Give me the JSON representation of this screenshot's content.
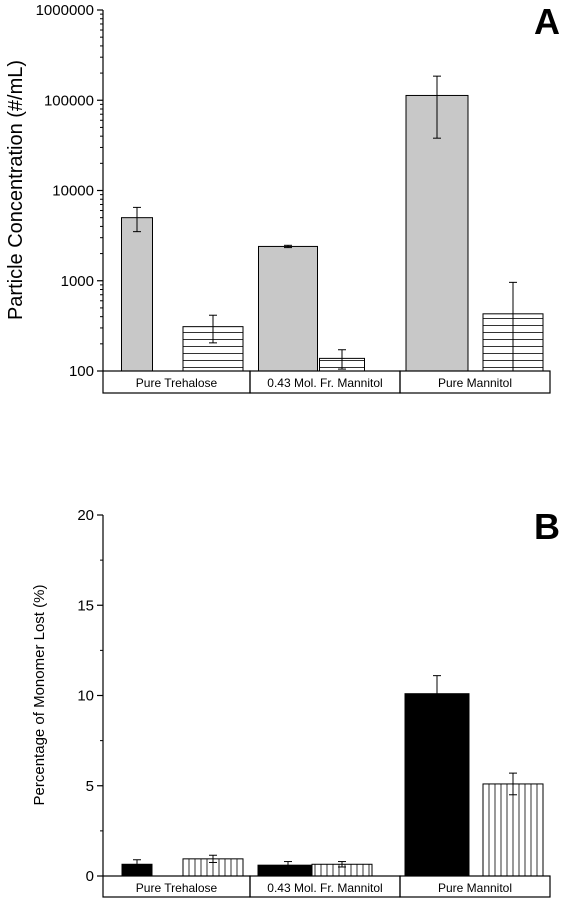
{
  "chart_data": [
    {
      "type": "bar",
      "panel_label": "A",
      "ylabel": "Particle Concentration (#/mL)",
      "yscale": "log",
      "ylim": [
        100,
        1000000
      ],
      "yticks": [
        "100",
        "1000",
        "10000",
        "100000",
        "1000000"
      ],
      "categories": [
        "Pure Trehalose",
        "0.43 Mol. Fr. Mannitol",
        "Pure Mannitol"
      ],
      "series": [
        {
          "values": [
            5000,
            2400,
            113000
          ],
          "error_low": [
            3500,
            2330,
            38000
          ],
          "error_high": [
            6500,
            2470,
            185000
          ],
          "fill": "#c8c8c8",
          "pattern": "solid"
        },
        {
          "values": [
            310,
            138,
            430
          ],
          "error_low": [
            205,
            105,
            100
          ],
          "error_high": [
            415,
            172,
            960
          ],
          "fill": "#ffffff",
          "pattern": "horizontal-lines"
        }
      ]
    },
    {
      "type": "bar",
      "panel_label": "B",
      "ylabel": "Percentage of Monomer Lost (%)",
      "yscale": "linear",
      "ylim": [
        0,
        20
      ],
      "yticks": [
        "0",
        "5",
        "10",
        "15",
        "20"
      ],
      "categories": [
        "Pure Trehalose",
        "0.43 Mol. Fr. Mannitol",
        "Pure Mannitol"
      ],
      "series": [
        {
          "values": [
            0.65,
            0.6,
            10.1
          ],
          "error": [
            0.25,
            0.2,
            1.0
          ],
          "fill": "#000000",
          "pattern": "solid"
        },
        {
          "values": [
            0.95,
            0.65,
            5.1
          ],
          "error": [
            0.2,
            0.15,
            0.6
          ],
          "fill": "#ffffff",
          "pattern": "vertical-lines"
        }
      ]
    }
  ]
}
